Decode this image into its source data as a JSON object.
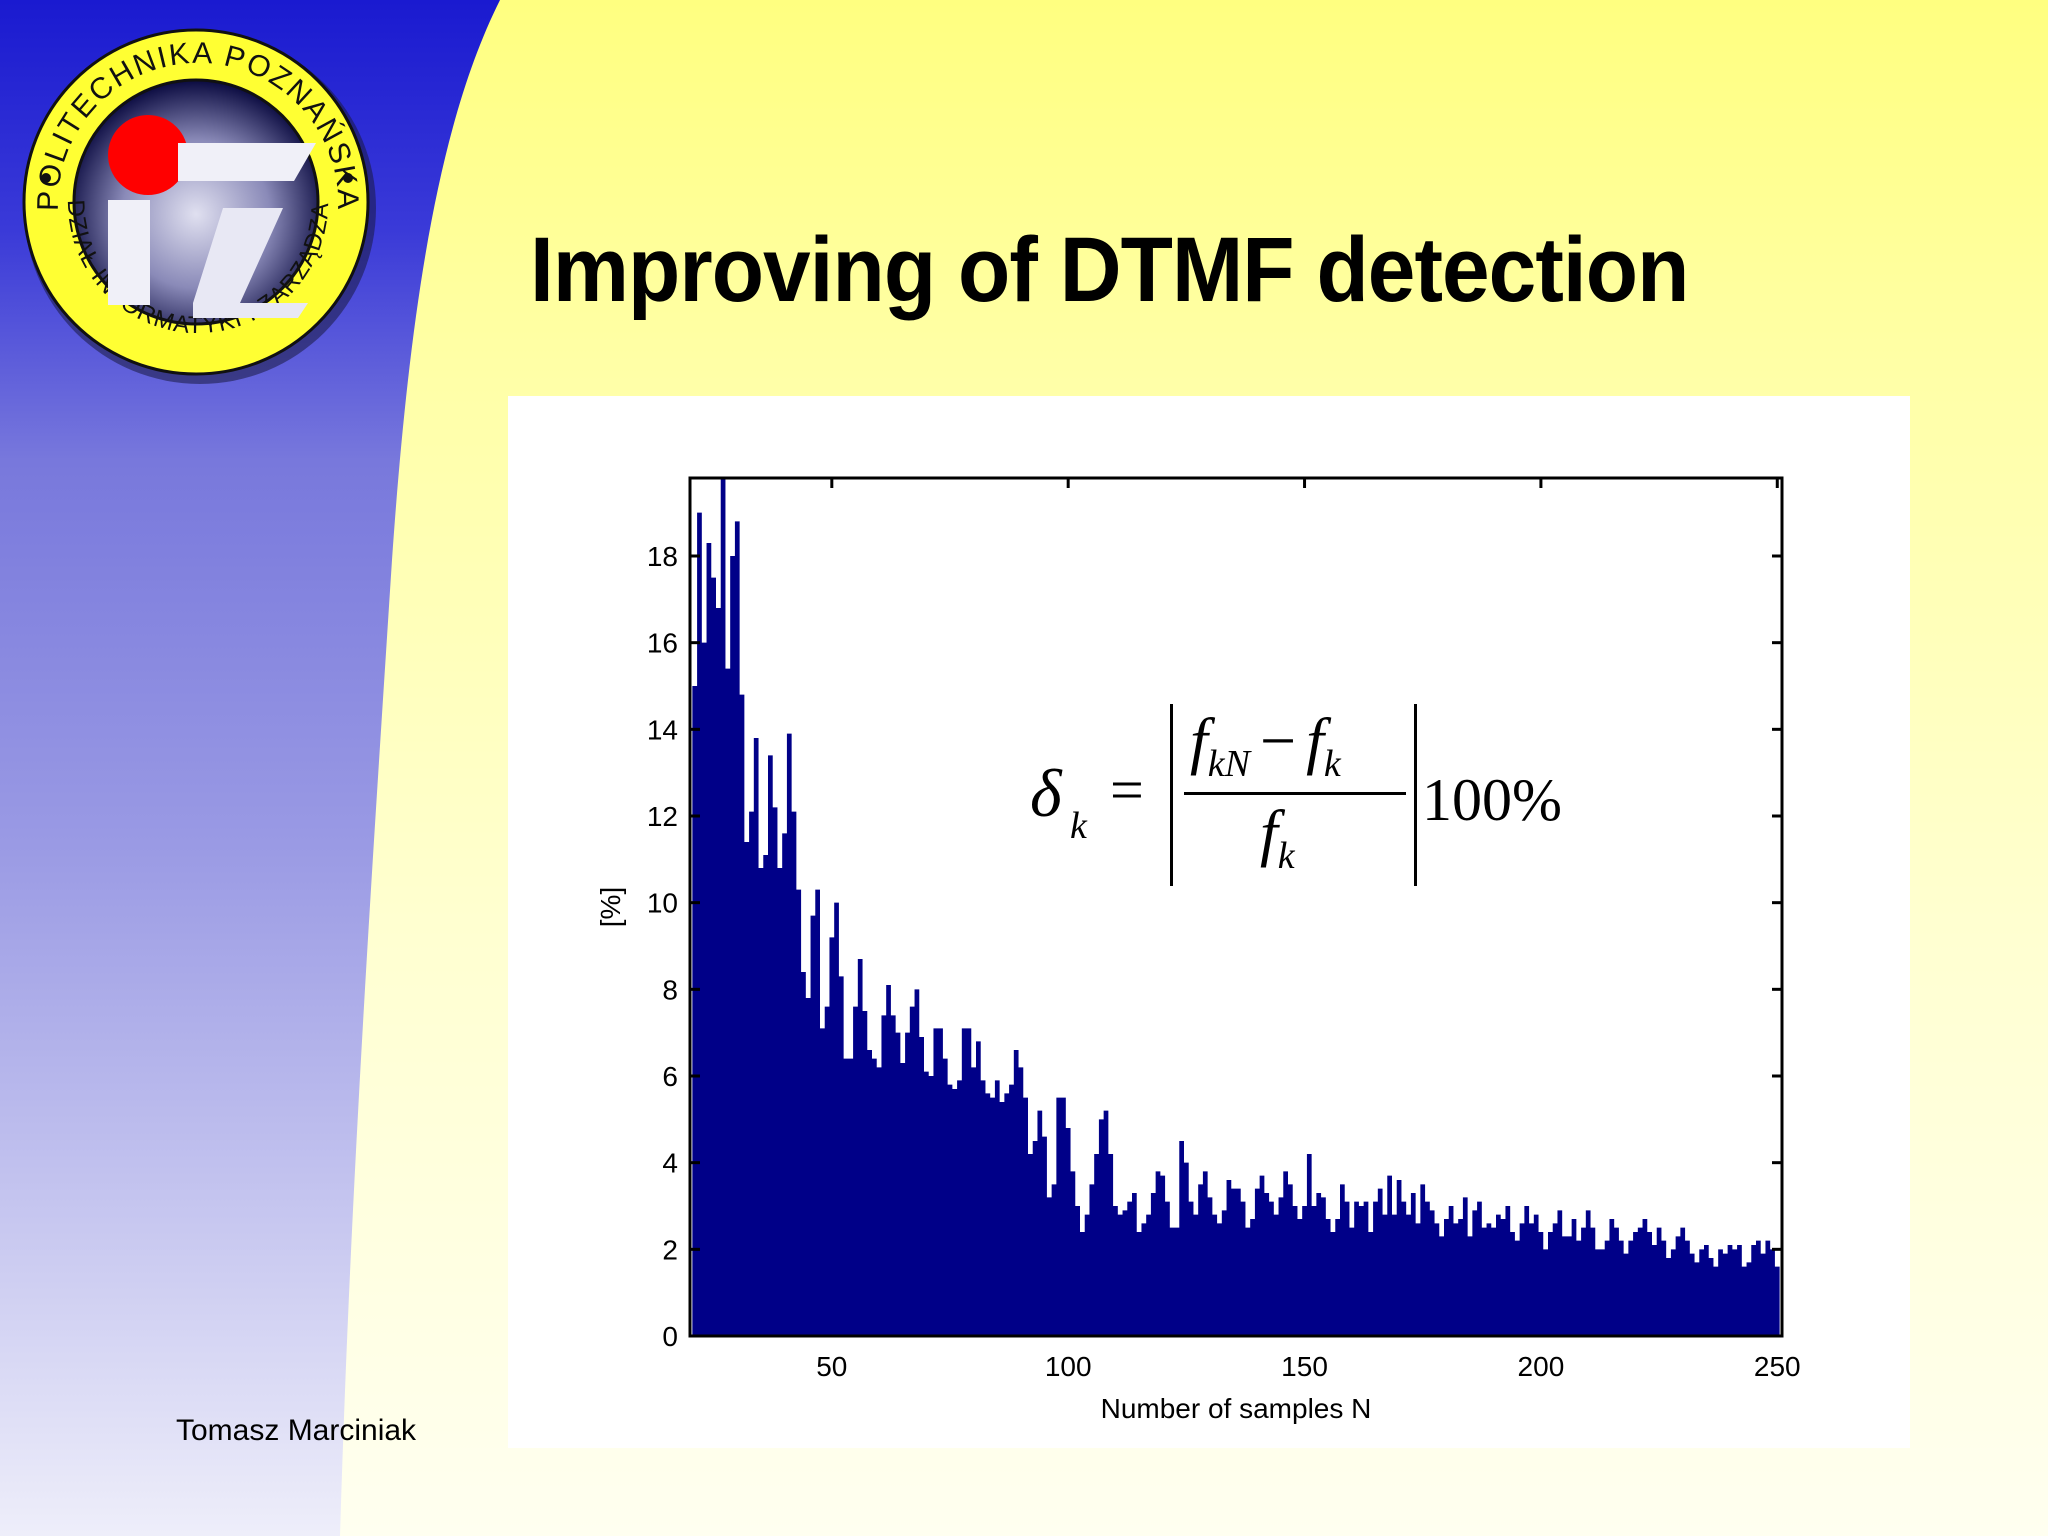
{
  "slide": {
    "title": "Improving of DTMF detection",
    "footer_author": "Tomasz Marciniak",
    "logo": {
      "ring_text_top": "POLITECHNIKA POZNAŃSKA",
      "ring_text_bottom": "WYDZIAŁ INFORMATYKI I ZARZĄDZANIA",
      "monogram": "IZ"
    }
  },
  "formula": {
    "lhs": "δ",
    "lhs_sub": "k",
    "equals": "=",
    "num_f1": "f",
    "num_f1_sub": "kN",
    "minus": "−",
    "num_f2": "f",
    "num_f2_sub": "k",
    "den_f": "f",
    "den_f_sub": "k",
    "suffix": "100%"
  },
  "chart_data": {
    "type": "bar",
    "title": "",
    "xlabel": "Number of samples N",
    "ylabel": "[%]",
    "xlim": [
      20,
      251
    ],
    "ylim": [
      0,
      19.8
    ],
    "xticks": [
      50,
      100,
      150,
      200,
      250
    ],
    "xtick_labels": [
      "50",
      "100",
      "150",
      "200",
      "250"
    ],
    "yticks": [
      0,
      2,
      4,
      6,
      8,
      10,
      12,
      14,
      16,
      18
    ],
    "ytick_labels": [
      "0",
      "2",
      "4",
      "6",
      "8",
      "10",
      "12",
      "14",
      "16",
      "18"
    ],
    "grid": false,
    "legend": null,
    "bar_color": "#000088",
    "x_start": 21,
    "x_step": 1,
    "values": [
      15.0,
      19.0,
      16.0,
      18.3,
      17.5,
      16.8,
      19.8,
      15.4,
      18.0,
      18.8,
      14.8,
      11.4,
      12.1,
      13.8,
      10.8,
      11.1,
      13.4,
      12.2,
      10.8,
      11.6,
      13.9,
      12.1,
      10.3,
      8.4,
      7.8,
      9.7,
      10.3,
      7.1,
      7.6,
      9.2,
      10.0,
      8.3,
      6.4,
      6.4,
      7.6,
      8.7,
      7.5,
      6.6,
      6.4,
      6.2,
      7.4,
      8.1,
      7.4,
      7.0,
      6.3,
      7.0,
      7.6,
      8.0,
      6.9,
      6.1,
      6.0,
      7.1,
      7.1,
      6.4,
      5.8,
      5.7,
      5.9,
      7.1,
      7.1,
      6.2,
      6.8,
      5.9,
      5.6,
      5.5,
      5.9,
      5.4,
      5.6,
      5.8,
      6.6,
      6.2,
      5.5,
      4.2,
      4.5,
      5.2,
      4.6,
      3.2,
      3.5,
      5.5,
      5.5,
      4.8,
      3.8,
      3.0,
      2.4,
      2.8,
      3.5,
      4.2,
      5.0,
      5.2,
      4.2,
      3.0,
      2.8,
      2.9,
      3.1,
      3.3,
      2.4,
      2.6,
      2.8,
      3.3,
      3.8,
      3.7,
      3.1,
      2.5,
      2.5,
      4.5,
      4.0,
      3.1,
      2.8,
      3.5,
      3.8,
      3.2,
      2.8,
      2.6,
      2.9,
      3.6,
      3.4,
      3.4,
      3.1,
      2.5,
      2.7,
      3.4,
      3.7,
      3.3,
      3.1,
      2.8,
      3.2,
      3.8,
      3.5,
      3.0,
      2.7,
      3.0,
      4.2,
      3.0,
      3.3,
      3.2,
      2.7,
      2.4,
      2.7,
      3.5,
      3.1,
      2.5,
      3.1,
      3.0,
      3.1,
      2.4,
      3.1,
      3.4,
      2.8,
      3.7,
      2.8,
      3.6,
      3.1,
      2.8,
      3.3,
      2.6,
      3.5,
      3.1,
      2.9,
      2.6,
      2.3,
      2.7,
      3.0,
      2.6,
      2.7,
      3.2,
      2.3,
      2.9,
      3.1,
      2.5,
      2.6,
      2.5,
      2.8,
      2.7,
      3.0,
      2.4,
      2.2,
      2.6,
      3.0,
      2.6,
      2.8,
      2.4,
      2.0,
      2.4,
      2.6,
      2.9,
      2.3,
      2.3,
      2.7,
      2.2,
      2.5,
      2.9,
      2.5,
      2.0,
      2.0,
      2.2,
      2.7,
      2.5,
      2.2,
      1.9,
      2.2,
      2.4,
      2.5,
      2.7,
      2.4,
      2.1,
      2.5,
      2.2,
      1.8,
      2.0,
      2.3,
      2.5,
      2.2,
      1.9,
      1.7,
      2.0,
      2.1,
      1.8,
      1.6,
      2.0,
      1.9,
      2.1,
      2.0,
      2.1,
      1.6,
      1.7,
      2.1,
      2.2,
      1.9,
      2.2,
      2.0,
      1.6
    ]
  }
}
